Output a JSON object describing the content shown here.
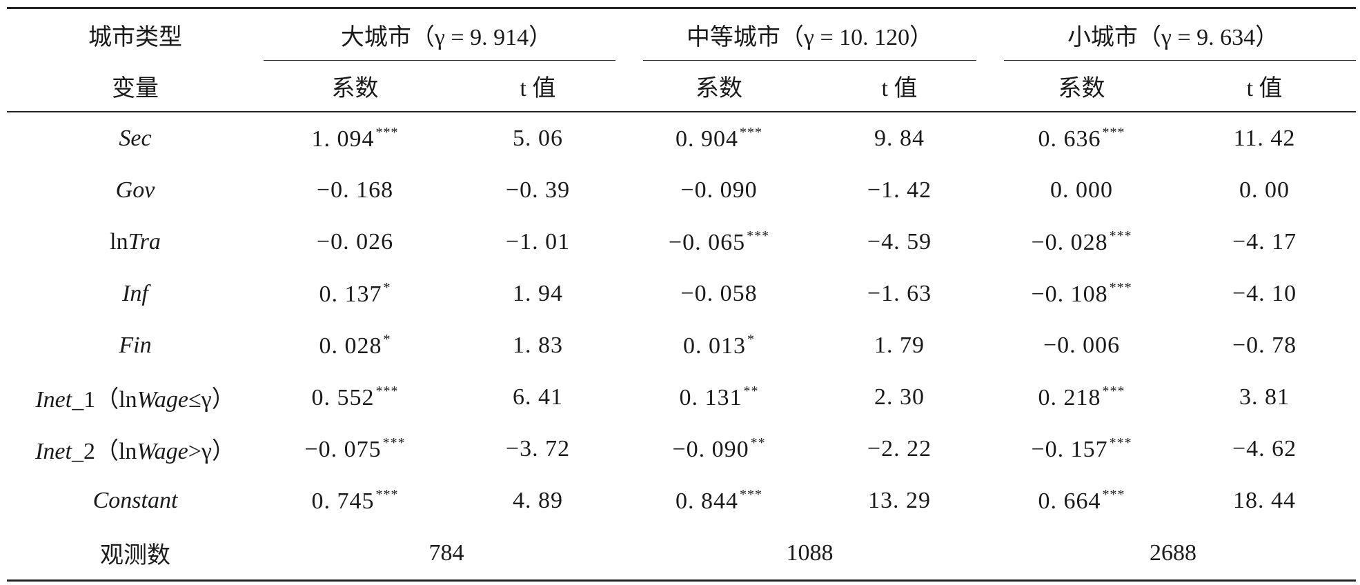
{
  "header": {
    "city_type_label": "城市类型",
    "variable_label": "变量",
    "groups": [
      {
        "name": "大城市",
        "gamma": "（γ = 9. 914）"
      },
      {
        "name": "中等城市",
        "gamma": "（γ = 10. 120）"
      },
      {
        "name": "小城市",
        "gamma": "（γ = 9. 634）"
      }
    ],
    "coef_label": "系数",
    "tval_label": "t 值"
  },
  "rows": [
    {
      "var_prefix": "",
      "var_italic": "Sec",
      "var_suffix": "",
      "cells": [
        [
          "1. 094",
          "***",
          "5. 06"
        ],
        [
          "0. 904",
          "***",
          "9. 84"
        ],
        [
          "0. 636",
          "***",
          "11. 42"
        ]
      ]
    },
    {
      "var_prefix": "",
      "var_italic": "Gov",
      "var_suffix": "",
      "cells": [
        [
          "−0. 168",
          "",
          "−0. 39"
        ],
        [
          "−0. 090",
          "",
          "−1. 42"
        ],
        [
          "0. 000",
          "",
          "0. 00"
        ]
      ]
    },
    {
      "var_prefix": "ln",
      "var_italic": "Tra",
      "var_suffix": "",
      "cells": [
        [
          "−0. 026",
          "",
          "−1. 01"
        ],
        [
          "−0. 065",
          "***",
          "−4. 59"
        ],
        [
          "−0. 028",
          "***",
          "−4. 17"
        ]
      ]
    },
    {
      "var_prefix": "",
      "var_italic": "Inf",
      "var_suffix": "",
      "cells": [
        [
          "0. 137",
          "*",
          "1. 94"
        ],
        [
          "−0. 058",
          "",
          "−1. 63"
        ],
        [
          "−0. 108",
          "***",
          "−4. 10"
        ]
      ]
    },
    {
      "var_prefix": "",
      "var_italic": "Fin",
      "var_suffix": "",
      "cells": [
        [
          "0. 028",
          "*",
          "1. 83"
        ],
        [
          "0. 013",
          "*",
          "1. 79"
        ],
        [
          "−0. 006",
          "",
          "−0. 78"
        ]
      ]
    },
    {
      "var_prefix": "",
      "var_italic": "Inet",
      "var_suffix": "_1（ln",
      "var_italic2": "Wage",
      "var_suffix2": "≤γ）",
      "cells": [
        [
          "0. 552",
          "***",
          "6. 41"
        ],
        [
          "0. 131",
          "**",
          "2. 30"
        ],
        [
          "0. 218",
          "***",
          "3. 81"
        ]
      ]
    },
    {
      "var_prefix": "",
      "var_italic": "Inet",
      "var_suffix": "_2（ln",
      "var_italic2": "Wage",
      "var_suffix2": ">γ）",
      "cells": [
        [
          "−0. 075",
          "***",
          "−3. 72"
        ],
        [
          "−0. 090",
          "**",
          "−2. 22"
        ],
        [
          "−0. 157",
          "***",
          "−4. 62"
        ]
      ]
    },
    {
      "var_prefix": "",
      "var_italic": "Constant",
      "var_suffix": "",
      "cells": [
        [
          "0. 745",
          "***",
          "4. 89"
        ],
        [
          "0. 844",
          "***",
          "13. 29"
        ],
        [
          "0. 664",
          "***",
          "18. 44"
        ]
      ]
    }
  ],
  "observations": {
    "label": "观测数",
    "values": [
      "784",
      "1088",
      "2688"
    ]
  }
}
